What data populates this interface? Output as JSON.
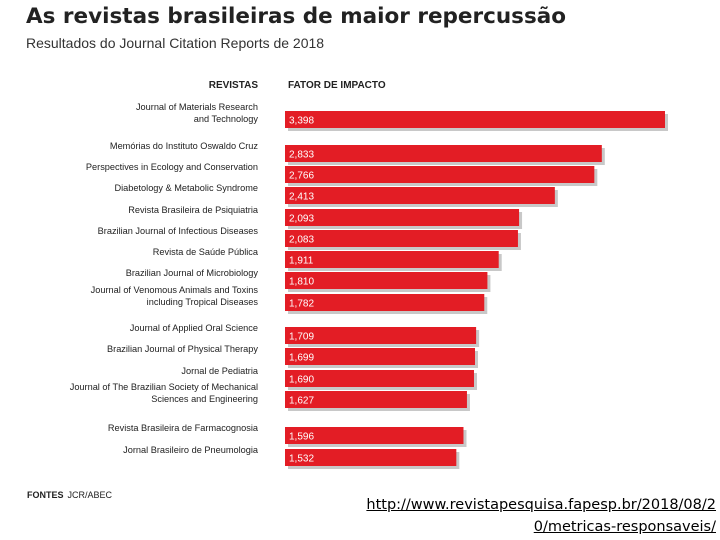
{
  "header": {
    "title": "As revistas brasileiras de maior repercussão",
    "subtitle": "Resultados do Journal Citation Reports de 2018"
  },
  "footer": {
    "sources_label": "FONTES",
    "sources_text": "JCR/ABEC",
    "link": "http://www.revistapesquisa.fapesp.br/2018/08/20/metricas-responsaveis/"
  },
  "colors": {
    "bar": "#e31d25",
    "bar_shadow": "#c8c8c8",
    "value_text": "#ffffff"
  },
  "chart_data": {
    "type": "bar",
    "orientation": "horizontal",
    "column_headers": [
      "REVISTAS",
      "FATOR DE IMPACTO"
    ],
    "categories": [
      [
        "Journal of Materials Research",
        "and Technology"
      ],
      [
        "Memórias do Instituto Oswaldo Cruz"
      ],
      [
        "Perspectives in Ecology and Conservation"
      ],
      [
        "Diabetology & Metabolic Syndrome"
      ],
      [
        "Revista Brasileira de Psiquiatria"
      ],
      [
        "Brazilian Journal of Infectious Diseases"
      ],
      [
        "Revista de Saúde Pública"
      ],
      [
        "Brazilian Journal of Microbiology"
      ],
      [
        "Journal of Venomous Animals and Toxins",
        "including Tropical Diseases"
      ],
      [
        "Journal of Applied Oral Science"
      ],
      [
        "Brazilian Journal of Physical Therapy"
      ],
      [
        "Jornal de Pediatria"
      ],
      [
        "Journal of The Brazilian Society of Mechanical",
        "Sciences and Engineering"
      ],
      [
        "Revista Brasileira de Farmacognosia"
      ],
      [
        "Jornal Brasileiro de Pneumologia"
      ]
    ],
    "values": [
      3.398,
      2.833,
      2.766,
      2.413,
      2.093,
      2.083,
      1.911,
      1.81,
      1.782,
      1.709,
      1.699,
      1.69,
      1.627,
      1.596,
      1.532
    ],
    "value_labels": [
      "3,398",
      "2,833",
      "2,766",
      "2,413",
      "2,093",
      "2,083",
      "1,911",
      "1,810",
      "1,782",
      "1,709",
      "1,699",
      "1,690",
      "1,627",
      "1,596",
      "1,532"
    ],
    "xlim": [
      0,
      3.398
    ],
    "grid": false,
    "legend": "none"
  }
}
